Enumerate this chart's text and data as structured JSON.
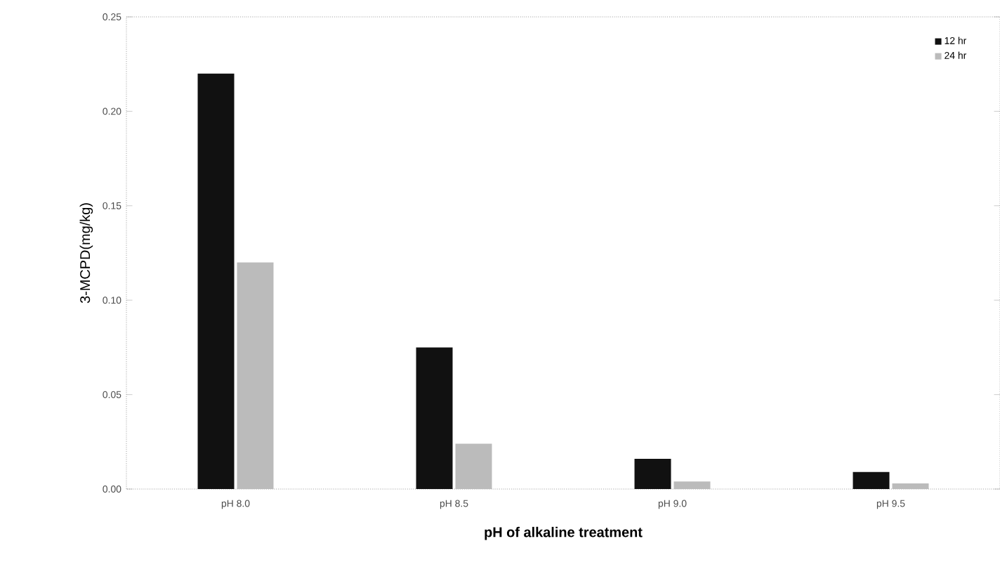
{
  "chart_data": {
    "type": "bar",
    "xlabel": "pH of alkaline treatment",
    "ylabel": "3-MCPD(mg/kg)",
    "categories": [
      "pH 8.0",
      "pH 8.5",
      "pH 9.0",
      "pH 9.5"
    ],
    "series": [
      {
        "name": "12 hr",
        "color": "#111111",
        "values": [
          0.22,
          0.075,
          0.016,
          0.009
        ]
      },
      {
        "name": "24 hr",
        "color": "#bbbbbb",
        "values": [
          0.12,
          0.024,
          0.004,
          0.003
        ]
      }
    ],
    "ylim": [
      0,
      0.25
    ],
    "yticks": [
      {
        "value": 0,
        "label": "0.00"
      },
      {
        "value": 0.05,
        "label": "0.05"
      },
      {
        "value": 0.1,
        "label": "0.10"
      },
      {
        "value": 0.15,
        "label": "0.15"
      },
      {
        "value": 0.2,
        "label": "0.20"
      },
      {
        "value": 0.25,
        "label": "0.25"
      }
    ],
    "legend": "top right"
  }
}
